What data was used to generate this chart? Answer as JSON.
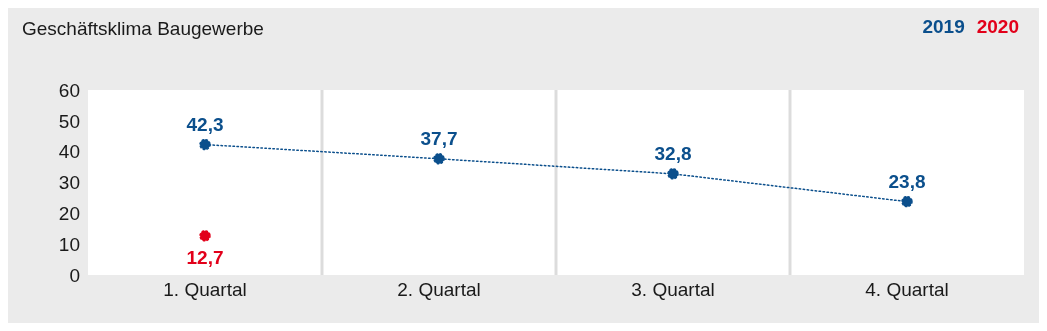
{
  "chart_data": {
    "type": "line",
    "title": "Geschäftsklima Baugewerbe",
    "categories": [
      "1. Quartal",
      "2. Quartal",
      "3. Quartal",
      "4. Quartal"
    ],
    "series": [
      {
        "name": "2019",
        "color": "#0b4f8c",
        "values": [
          42.3,
          37.7,
          32.8,
          23.8
        ],
        "value_labels": [
          "42,3",
          "37,7",
          "32,8",
          "23,8"
        ]
      },
      {
        "name": "2020",
        "color": "#e2001a",
        "values": [
          12.7,
          null,
          null,
          null
        ],
        "value_labels": [
          "12,7",
          null,
          null,
          null
        ]
      }
    ],
    "ylim": [
      0,
      60
    ],
    "yticks": [
      0,
      10,
      20,
      30,
      40,
      50,
      60
    ],
    "grid": "x",
    "legend": "top right",
    "marker": "circle",
    "line_style": "dotted"
  }
}
